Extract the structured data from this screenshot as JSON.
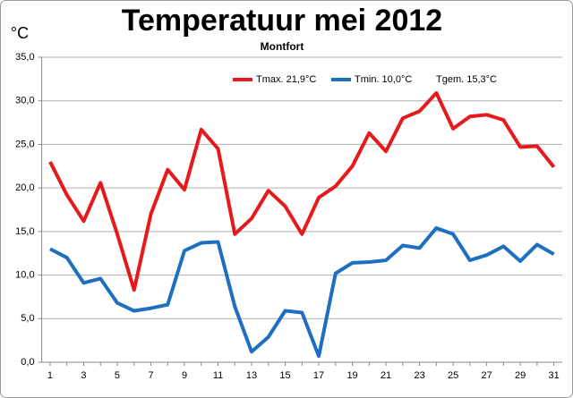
{
  "chart_data": {
    "type": "line",
    "title": "Temperatuur mei 2012",
    "subtitle": "Montfort",
    "y_label": "°C",
    "annotation": "Tgem. 15,3°C",
    "x": [
      1,
      2,
      3,
      4,
      5,
      6,
      7,
      8,
      9,
      10,
      11,
      12,
      13,
      14,
      15,
      16,
      17,
      18,
      19,
      20,
      21,
      22,
      23,
      24,
      25,
      26,
      27,
      28,
      29,
      30,
      31
    ],
    "xlim": [
      0.5,
      31.5
    ],
    "xticks": [
      1,
      3,
      5,
      7,
      9,
      11,
      13,
      15,
      17,
      19,
      21,
      23,
      25,
      27,
      29,
      31
    ],
    "ylim": [
      0,
      35
    ],
    "yticks": [
      {
        "value": 0,
        "label": "0,0"
      },
      {
        "value": 5,
        "label": "5,0"
      },
      {
        "value": 10,
        "label": "10,0"
      },
      {
        "value": 15,
        "label": "15,0"
      },
      {
        "value": 20,
        "label": "20,0"
      },
      {
        "value": 25,
        "label": "25,0"
      },
      {
        "value": 30,
        "label": "30,0"
      },
      {
        "value": 35,
        "label": "35,0"
      }
    ],
    "grid": true,
    "series": [
      {
        "name": "Tmax. 21,9°C",
        "color": "#e41a1c",
        "values": [
          23.0,
          19.2,
          16.2,
          20.6,
          14.7,
          8.3,
          17.0,
          22.1,
          19.8,
          26.7,
          24.5,
          14.7,
          16.5,
          19.7,
          17.9,
          14.7,
          18.9,
          20.2,
          22.5,
          26.3,
          24.2,
          28.0,
          28.8,
          30.9,
          26.8,
          28.2,
          28.4,
          27.8,
          24.7,
          24.8,
          22.4
        ]
      },
      {
        "name": "Tmin. 10,0°C",
        "color": "#1f6fc0",
        "values": [
          13.0,
          12.0,
          9.1,
          9.6,
          6.8,
          5.9,
          6.2,
          6.6,
          12.8,
          13.7,
          13.8,
          6.4,
          1.2,
          2.9,
          5.9,
          5.7,
          0.7,
          10.2,
          11.4,
          11.5,
          11.7,
          13.4,
          13.1,
          15.4,
          14.7,
          11.7,
          12.3,
          13.3,
          11.6,
          13.5,
          12.4
        ]
      }
    ]
  }
}
